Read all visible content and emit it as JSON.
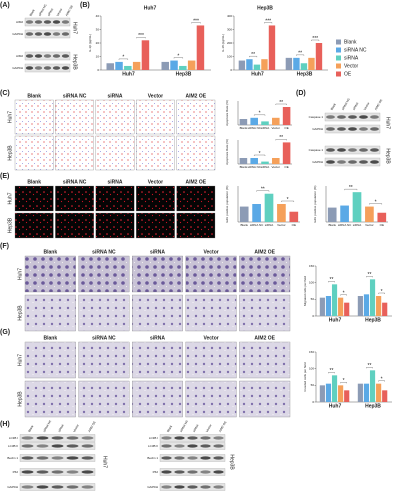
{
  "labels": {
    "A": {
      "letter": "(A)",
      "columns": [
        "Blank",
        "siRNA NC",
        "siRNA",
        "Vector",
        "AIM2 OE"
      ],
      "rows": [
        "AIM2",
        "GAPDH",
        "AIM2",
        "GAPDH"
      ],
      "cells": [
        "Huh7",
        "Hep3B"
      ]
    },
    "B": {
      "letter": "(B)",
      "titles": [
        "Huh7",
        "Hep3B"
      ]
    },
    "C": {
      "letter": "(C)",
      "columns": [
        "Blank",
        "siRNA NC",
        "siRNA",
        "Vector",
        "AIM2 OE"
      ],
      "cells": [
        "Huh7",
        "Hep3B"
      ]
    },
    "D": {
      "letter": "(D)",
      "columns": [
        "Blank",
        "siRNA NC",
        "siRNA",
        "Vector",
        "AIM2 OE"
      ],
      "rows": [
        "Caspase 1",
        "GAPDH",
        "Caspase 1",
        "GAPDH"
      ],
      "cells": [
        "Huh7",
        "Hep3B"
      ]
    },
    "E": {
      "letter": "(E)",
      "columns": [
        "Blank",
        "siRNA NC",
        "siRNA",
        "Vector",
        "AIM2 OE"
      ],
      "cells": [
        "Huh7",
        "Hep3B"
      ]
    },
    "F": {
      "letter": "(F)",
      "columns": [
        "Blank",
        "siRNA NC",
        "siRNA",
        "Vector",
        "AIM2 OE"
      ],
      "cells": [
        "Huh7",
        "Hep3B"
      ]
    },
    "G": {
      "letter": "(G)",
      "columns": [
        "Blank",
        "siRNA NC",
        "siRNA",
        "Vector",
        "AIM2 OE"
      ],
      "cells": [
        "Huh7",
        "Hep3B"
      ]
    },
    "H": {
      "letter": "(H)",
      "columns": [
        "Blank",
        "siRNA NC",
        "siRNA",
        "Vector",
        "AIM2 OE"
      ],
      "rows": [
        "LC3B I",
        "LC3B II",
        "Beclin 1",
        "P62",
        "GAPDH"
      ],
      "cells": [
        "Huh7",
        "Hep3B"
      ]
    }
  },
  "chart_data": [
    {
      "type": "bar",
      "ylabel": "IL-1β (pg/mL)",
      "categories": [
        "Huh7",
        "Hep3B"
      ],
      "ylim": [
        0,
        40
      ],
      "yticks": [
        0,
        10,
        20,
        30,
        40
      ],
      "series": [
        {
          "name": "Blank",
          "color": "#8c9bb5",
          "values": [
            5,
            6
          ]
        },
        {
          "name": "siRNA NC",
          "color": "#5aa9e6",
          "values": [
            6,
            7
          ]
        },
        {
          "name": "siRNA",
          "color": "#5fd0c0",
          "values": [
            3,
            3
          ]
        },
        {
          "name": "Vector",
          "color": "#f5a05a",
          "values": [
            6,
            7
          ]
        },
        {
          "name": "OE",
          "color": "#e8605a",
          "values": [
            22,
            33
          ]
        }
      ],
      "annotations": [
        "*",
        "***",
        "*",
        "***"
      ]
    },
    {
      "type": "bar",
      "ylabel": "IL-18 (pg/mL)",
      "categories": [
        "Huh7",
        "Hep3B"
      ],
      "ylim": [
        0,
        400
      ],
      "yticks": [
        0,
        100,
        200,
        300,
        400
      ],
      "series": [
        {
          "color": "#8c9bb5",
          "values": [
            70,
            90
          ]
        },
        {
          "color": "#5aa9e6",
          "values": [
            80,
            90
          ]
        },
        {
          "color": "#5fd0c0",
          "values": [
            40,
            50
          ]
        },
        {
          "color": "#f5a05a",
          "values": [
            80,
            90
          ]
        },
        {
          "color": "#e8605a",
          "values": [
            330,
            200
          ]
        }
      ],
      "annotations": [
        "**",
        "***",
        "**",
        "***"
      ]
    },
    {
      "type": "bar",
      "ylabel": "Apoptosis Rate (%)",
      "categories": [
        "Blank",
        "siRNA NC",
        "siRNA",
        "Vector",
        "OE"
      ],
      "ylim": [
        0,
        20
      ],
      "values": [
        5,
        6,
        3,
        6,
        15
      ],
      "colors": [
        "#8c9bb5",
        "#5aa9e6",
        "#5fd0c0",
        "#f5a05a",
        "#e8605a"
      ],
      "annotations": [
        "*",
        "**"
      ]
    },
    {
      "type": "bar",
      "ylabel": "Apoptosis Rate (%)",
      "categories": [
        "Blank",
        "siRNA NC",
        "siRNA",
        "Vector",
        "OE"
      ],
      "ylim": [
        0,
        20
      ],
      "values": [
        5,
        5,
        2,
        5,
        18
      ],
      "colors": [
        "#8c9bb5",
        "#5aa9e6",
        "#5fd0c0",
        "#f5a05a",
        "#e8605a"
      ],
      "annotations": [
        "*",
        "**"
      ]
    },
    {
      "type": "bar",
      "ylabel": "EdU positive population (%)",
      "categories": [
        "Blank",
        "siRNA NC",
        "siRNA",
        "Vector",
        "OE"
      ],
      "ylim": [
        0,
        70
      ],
      "values": [
        30,
        35,
        55,
        35,
        20
      ],
      "colors": [
        "#8c9bb5",
        "#5aa9e6",
        "#5fd0c0",
        "#f5a05a",
        "#e8605a"
      ],
      "annotations": [
        "**",
        "*"
      ]
    },
    {
      "type": "bar",
      "ylabel": "EdU positive population (%)",
      "categories": [
        "Blank",
        "siRNA NC",
        "siRNA",
        "Vector",
        "OE"
      ],
      "ylim": [
        0,
        70
      ],
      "values": [
        28,
        32,
        58,
        30,
        18
      ],
      "colors": [
        "#8c9bb5",
        "#5aa9e6",
        "#5fd0c0",
        "#f5a05a",
        "#e8605a"
      ],
      "annotations": [
        "**",
        "*"
      ]
    },
    {
      "type": "bar",
      "ylabel": "Migrated cells per field",
      "categories": [
        "Huh7",
        "Hep3B"
      ],
      "ylim": [
        0,
        150
      ],
      "yticks": [
        0,
        50,
        100,
        150
      ],
      "series": [
        {
          "color": "#8c9bb5",
          "values": [
            55,
            60
          ]
        },
        {
          "color": "#5aa9e6",
          "values": [
            60,
            65
          ]
        },
        {
          "color": "#5fd0c0",
          "values": [
            95,
            110
          ]
        },
        {
          "color": "#f5a05a",
          "values": [
            55,
            60
          ]
        },
        {
          "color": "#e8605a",
          "values": [
            40,
            40
          ]
        }
      ],
      "annotations": [
        "**",
        "*",
        "**",
        "*"
      ]
    },
    {
      "type": "bar",
      "ylabel": "Invaded cells per field",
      "categories": [
        "Huh7",
        "Hep3B"
      ],
      "ylim": [
        0,
        150
      ],
      "yticks": [
        0,
        50,
        100,
        150
      ],
      "series": [
        {
          "color": "#8c9bb5",
          "values": [
            50,
            55
          ]
        },
        {
          "color": "#5aa9e6",
          "values": [
            55,
            55
          ]
        },
        {
          "color": "#5fd0c0",
          "values": [
            80,
            95
          ]
        },
        {
          "color": "#f5a05a",
          "values": [
            50,
            55
          ]
        },
        {
          "color": "#e8605a",
          "values": [
            35,
            35
          ]
        }
      ],
      "annotations": [
        "**",
        "*",
        "**",
        "*"
      ]
    }
  ]
}
